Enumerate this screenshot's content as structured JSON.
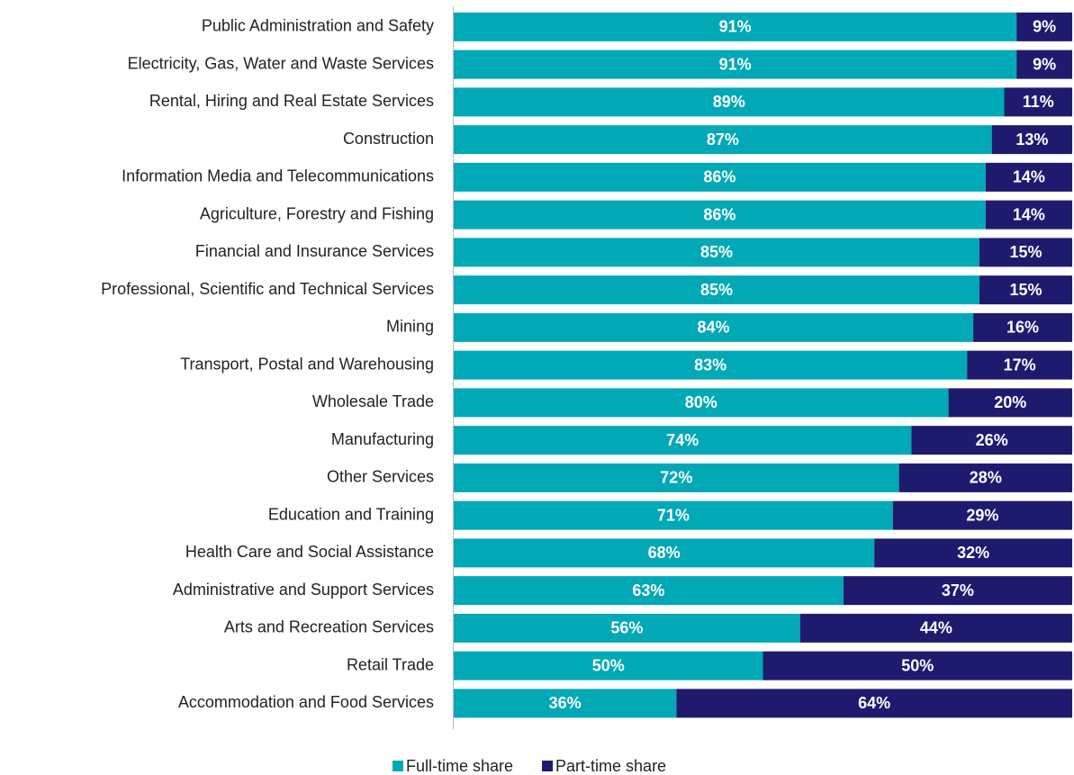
{
  "chart_data": {
    "type": "stacked-bar-horizontal",
    "categories": [
      "Public Administration and Safety",
      "Electricity, Gas, Water and Waste Services",
      "Rental, Hiring and Real Estate Services",
      "Construction",
      "Information Media and Telecommunications",
      "Agriculture, Forestry and Fishing",
      "Financial and Insurance Services",
      "Professional, Scientific and Technical Services",
      "Mining",
      "Transport, Postal and Warehousing",
      "Wholesale Trade",
      "Manufacturing",
      "Other Services",
      "Education and Training",
      "Health Care and Social Assistance",
      "Administrative and Support Services",
      "Arts and Recreation Services",
      "Retail Trade",
      "Accommodation and Food Services"
    ],
    "series": [
      {
        "name": "Full-time share",
        "color": "#00a9b5",
        "values": [
          91,
          91,
          89,
          87,
          86,
          86,
          85,
          85,
          84,
          83,
          80,
          74,
          72,
          71,
          68,
          63,
          56,
          50,
          36
        ],
        "value_labels": [
          "91%",
          "91%",
          "89%",
          "87%",
          "86%",
          "86%",
          "85%",
          "85%",
          "84%",
          "83%",
          "80%",
          "74%",
          "72%",
          "71%",
          "68%",
          "63%",
          "56%",
          "50%",
          "36%"
        ]
      },
      {
        "name": "Part-time share",
        "color": "#1e1b6f",
        "values": [
          9,
          9,
          11,
          13,
          14,
          14,
          15,
          15,
          16,
          17,
          20,
          26,
          28,
          29,
          32,
          37,
          44,
          50,
          64
        ],
        "value_labels": [
          "9%",
          "9%",
          "11%",
          "13%",
          "14%",
          "14%",
          "15%",
          "15%",
          "16%",
          "17%",
          "20%",
          "26%",
          "28%",
          "29%",
          "32%",
          "37%",
          "44%",
          "50%",
          "64%"
        ]
      }
    ],
    "xlim": [
      0,
      100
    ],
    "legend": "bottom"
  }
}
